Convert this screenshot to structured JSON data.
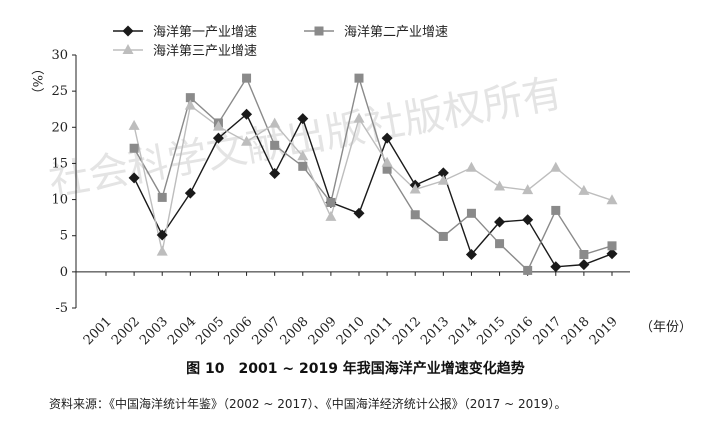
{
  "chart_data": {
    "type": "line",
    "x": [
      "2001",
      "2002",
      "2003",
      "2004",
      "2005",
      "2006",
      "2007",
      "2008",
      "2009",
      "2010",
      "2011",
      "2012",
      "2013",
      "2014",
      "2015",
      "2016",
      "2017",
      "2018",
      "2019"
    ],
    "ylim": [
      -5,
      30
    ],
    "yticks": [
      -5,
      0,
      5,
      10,
      15,
      20,
      25,
      30
    ],
    "ylabel": "（%）",
    "xlabel": "（年份）",
    "legend_position": "top",
    "grid": false,
    "series": [
      {
        "name": "海洋第一产业增速",
        "marker": "diamond",
        "color": "#1a1a1a",
        "values": [
          null,
          13.0,
          5.1,
          10.9,
          18.5,
          21.8,
          13.6,
          21.2,
          9.6,
          8.1,
          18.5,
          12.0,
          13.7,
          2.4,
          6.9,
          7.2,
          0.7,
          1.0,
          2.5
        ]
      },
      {
        "name": "海洋第二产业增速",
        "marker": "square",
        "color": "#8a8a8a",
        "values": [
          null,
          17.1,
          10.3,
          24.1,
          20.6,
          26.8,
          17.5,
          14.6,
          9.6,
          26.8,
          14.2,
          7.9,
          4.9,
          8.1,
          3.9,
          0.2,
          8.5,
          2.4,
          3.6
        ]
      },
      {
        "name": "海洋第三产业增速",
        "marker": "triangle",
        "color": "#bdbdbd",
        "values": [
          null,
          20.2,
          2.8,
          23.0,
          20.1,
          18.0,
          20.5,
          16.0,
          7.6,
          21.2,
          15.1,
          11.4,
          12.6,
          14.4,
          11.8,
          11.3,
          14.4,
          11.2,
          9.9
        ]
      }
    ]
  },
  "caption": "图 10　2001 ~ 2019 年我国海洋产业增速变化趋势",
  "source": "资料来源：《中国海洋统计年鉴》（2002 ~ 2017）、《中国海洋经济统计公报》（2017 ~ 2019）。",
  "watermark": "社会科学文献出版社版权所有"
}
